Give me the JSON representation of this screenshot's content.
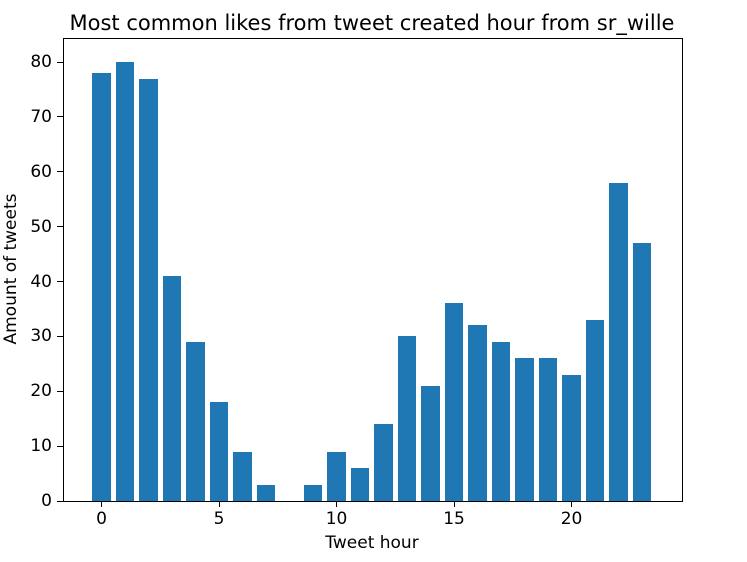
{
  "chart_data": {
    "type": "bar",
    "title": "Most common likes from tweet created hour from sr_wille",
    "xlabel": "Tweet hour",
    "ylabel": "Amount of tweets",
    "categories": [
      0,
      1,
      2,
      3,
      4,
      5,
      6,
      7,
      8,
      9,
      10,
      11,
      12,
      13,
      14,
      15,
      16,
      17,
      18,
      19,
      20,
      21,
      22,
      23
    ],
    "values": [
      78,
      80,
      77,
      41,
      29,
      18,
      9,
      3,
      0,
      3,
      9,
      6,
      14,
      30,
      21,
      36,
      32,
      29,
      26,
      26,
      23,
      33,
      58,
      47
    ],
    "bar_color": "#1f77b4",
    "bar_width": 0.8,
    "xlim": [
      -1.6,
      24.7
    ],
    "ylim": [
      0,
      84.2
    ],
    "x_ticks": [
      0,
      5,
      10,
      15,
      20
    ],
    "y_ticks": [
      0,
      10,
      20,
      30,
      40,
      50,
      60,
      70,
      80
    ],
    "grid": false,
    "legend_position": "none",
    "axis_color": "#000000",
    "background_color": "#ffffff"
  }
}
